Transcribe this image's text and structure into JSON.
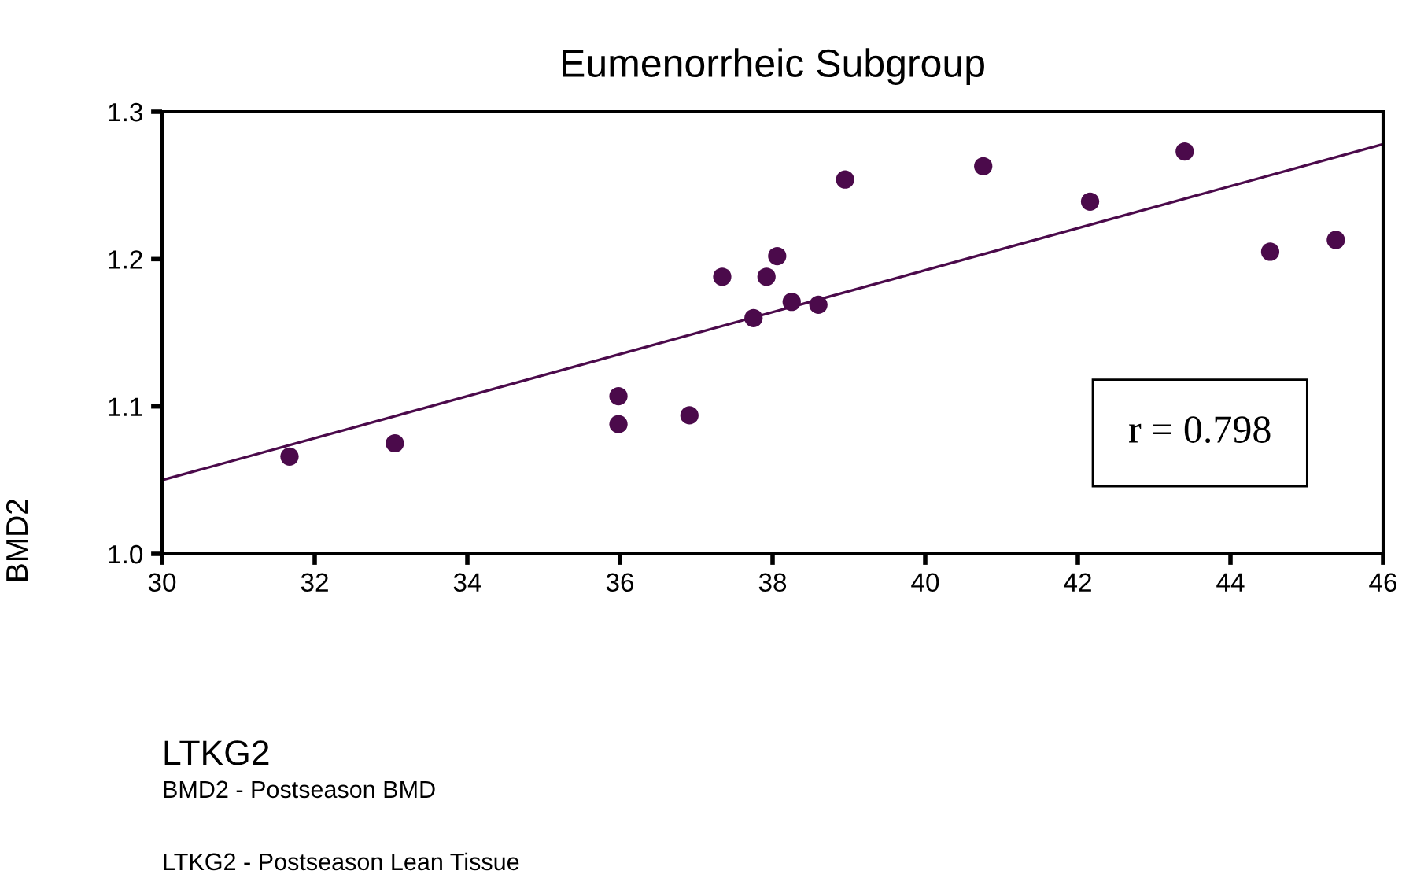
{
  "chart_data": {
    "type": "scatter",
    "title": "Eumenorrheic Subgroup",
    "xlabel": "LTKG2",
    "ylabel": "BMD2",
    "series": [
      {
        "color": "#4b0a4b",
        "marker": "circle",
        "x": [
          31.67,
          33.05,
          35.98,
          35.98,
          36.91,
          37.34,
          37.75,
          37.92,
          38.06,
          38.25,
          38.6,
          38.95,
          40.76,
          42.16,
          43.4,
          44.52,
          45.38
        ],
        "values": [
          1.066,
          1.075,
          1.107,
          1.088,
          1.094,
          1.188,
          1.16,
          1.188,
          1.202,
          1.171,
          1.169,
          1.254,
          1.263,
          1.239,
          1.273,
          1.205,
          1.213
        ]
      },
      {
        "type": "line",
        "color": "#4b0a4b",
        "x": [
          30,
          46
        ],
        "values": [
          1.05,
          1.278
        ]
      }
    ],
    "xlim": [
      30,
      46
    ],
    "xticks": [
      30,
      32,
      34,
      36,
      38,
      40,
      42,
      44,
      46
    ],
    "ylim": [
      1.0,
      1.3
    ],
    "yticks": [
      {
        "value": 1.0,
        "label": "1.0"
      },
      {
        "value": 1.1,
        "label": "1.1"
      },
      {
        "value": 1.2,
        "label": "1.2"
      },
      {
        "value": 1.3,
        "label": "1.3"
      }
    ],
    "grid": false,
    "annotations": [
      "r = 0.798",
      "BMD2 - Postseason BMD",
      "LTKG2 - Postseason Lean Tissue"
    ]
  }
}
